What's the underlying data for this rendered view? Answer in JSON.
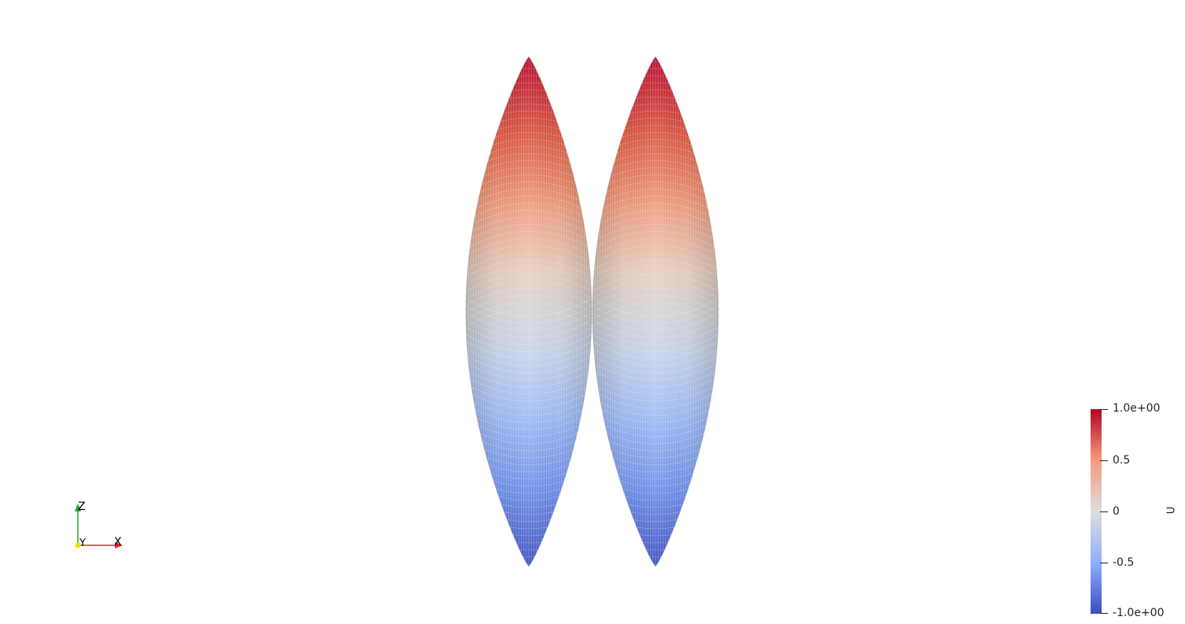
{
  "scene": {
    "background": "#ffffff",
    "field_name": "U",
    "lobes": 2,
    "lobe_top_value": 1.0,
    "lobe_bottom_value": -1.0
  },
  "colormap": {
    "name": "Cool to Warm",
    "stops": [
      {
        "value": -1.0,
        "color": "#3b4cc0"
      },
      {
        "value": -0.5,
        "color": "#8db0fe"
      },
      {
        "value": 0.0,
        "color": "#dddddd"
      },
      {
        "value": 0.5,
        "color": "#f49a7b"
      },
      {
        "value": 1.0,
        "color": "#b40426"
      }
    ]
  },
  "colorbar": {
    "title": "U",
    "labels": [
      "1.0e+00",
      "0.5",
      "0",
      "-0.5",
      "-1.0e+00"
    ]
  },
  "axes": {
    "z_label": "Z",
    "y_label": "Y",
    "x_label": "X",
    "x_color": "#d62728",
    "z_color": "#2ca02c",
    "y_color": "#e6e600"
  }
}
